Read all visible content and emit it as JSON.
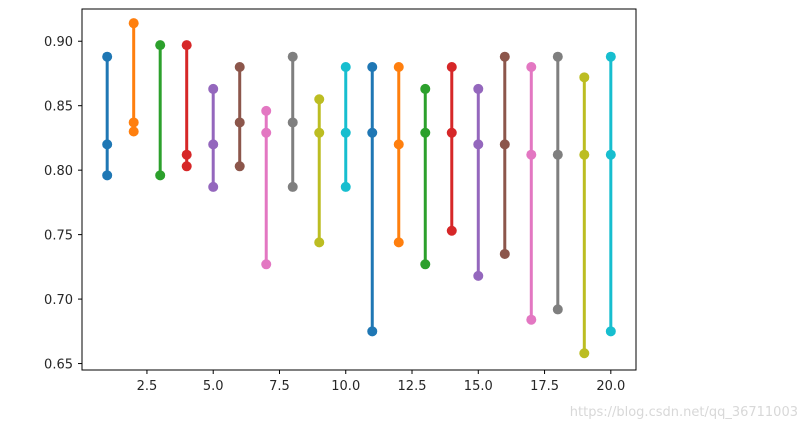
{
  "chart_data": {
    "type": "scatter",
    "title": "",
    "xlabel": "",
    "ylabel": "",
    "xlim": [
      0.05,
      20.95
    ],
    "ylim": [
      0.645,
      0.925
    ],
    "grid": false,
    "legend": "none",
    "x_ticks": [
      2.5,
      5.0,
      7.5,
      10.0,
      12.5,
      15.0,
      17.5,
      20.0
    ],
    "x_tick_labels": [
      "2.5",
      "5.0",
      "7.5",
      "10.0",
      "12.5",
      "15.0",
      "17.5",
      "20.0"
    ],
    "y_ticks": [
      0.65,
      0.7,
      0.75,
      0.8,
      0.85,
      0.9
    ],
    "y_tick_labels": [
      "0.65",
      "0.70",
      "0.75",
      "0.80",
      "0.85",
      "0.90"
    ],
    "series": [
      {
        "x": 1,
        "color": "#1f77b4",
        "values": [
          0.888,
          0.82,
          0.796
        ]
      },
      {
        "x": 2,
        "color": "#ff7f0e",
        "values": [
          0.914,
          0.837,
          0.83
        ]
      },
      {
        "x": 3,
        "color": "#2ca02c",
        "values": [
          0.897,
          0.796
        ]
      },
      {
        "x": 4,
        "color": "#d62728",
        "values": [
          0.897,
          0.812,
          0.803
        ]
      },
      {
        "x": 5,
        "color": "#9467bd",
        "values": [
          0.863,
          0.82,
          0.787
        ]
      },
      {
        "x": 6,
        "color": "#8c564b",
        "values": [
          0.88,
          0.837,
          0.803
        ]
      },
      {
        "x": 7,
        "color": "#e377c2",
        "values": [
          0.846,
          0.829,
          0.727
        ]
      },
      {
        "x": 8,
        "color": "#7f7f7f",
        "values": [
          0.888,
          0.837,
          0.787
        ]
      },
      {
        "x": 9,
        "color": "#bcbd22",
        "values": [
          0.855,
          0.829,
          0.744
        ]
      },
      {
        "x": 10,
        "color": "#17becf",
        "values": [
          0.88,
          0.829,
          0.787
        ]
      },
      {
        "x": 11,
        "color": "#1f77b4",
        "values": [
          0.88,
          0.829,
          0.675
        ]
      },
      {
        "x": 12,
        "color": "#ff7f0e",
        "values": [
          0.88,
          0.82,
          0.744
        ]
      },
      {
        "x": 13,
        "color": "#2ca02c",
        "values": [
          0.863,
          0.829,
          0.727
        ]
      },
      {
        "x": 14,
        "color": "#d62728",
        "values": [
          0.88,
          0.829,
          0.753
        ]
      },
      {
        "x": 15,
        "color": "#9467bd",
        "values": [
          0.863,
          0.82,
          0.718
        ]
      },
      {
        "x": 16,
        "color": "#8c564b",
        "values": [
          0.888,
          0.82,
          0.735
        ]
      },
      {
        "x": 17,
        "color": "#e377c2",
        "values": [
          0.88,
          0.812,
          0.684
        ]
      },
      {
        "x": 18,
        "color": "#7f7f7f",
        "values": [
          0.888,
          0.812,
          0.692
        ]
      },
      {
        "x": 19,
        "color": "#bcbd22",
        "values": [
          0.872,
          0.812,
          0.658
        ]
      },
      {
        "x": 20,
        "color": "#17becf",
        "values": [
          0.888,
          0.812,
          0.675
        ]
      }
    ]
  },
  "watermark": "https://blog.csdn.net/qq_36711003"
}
